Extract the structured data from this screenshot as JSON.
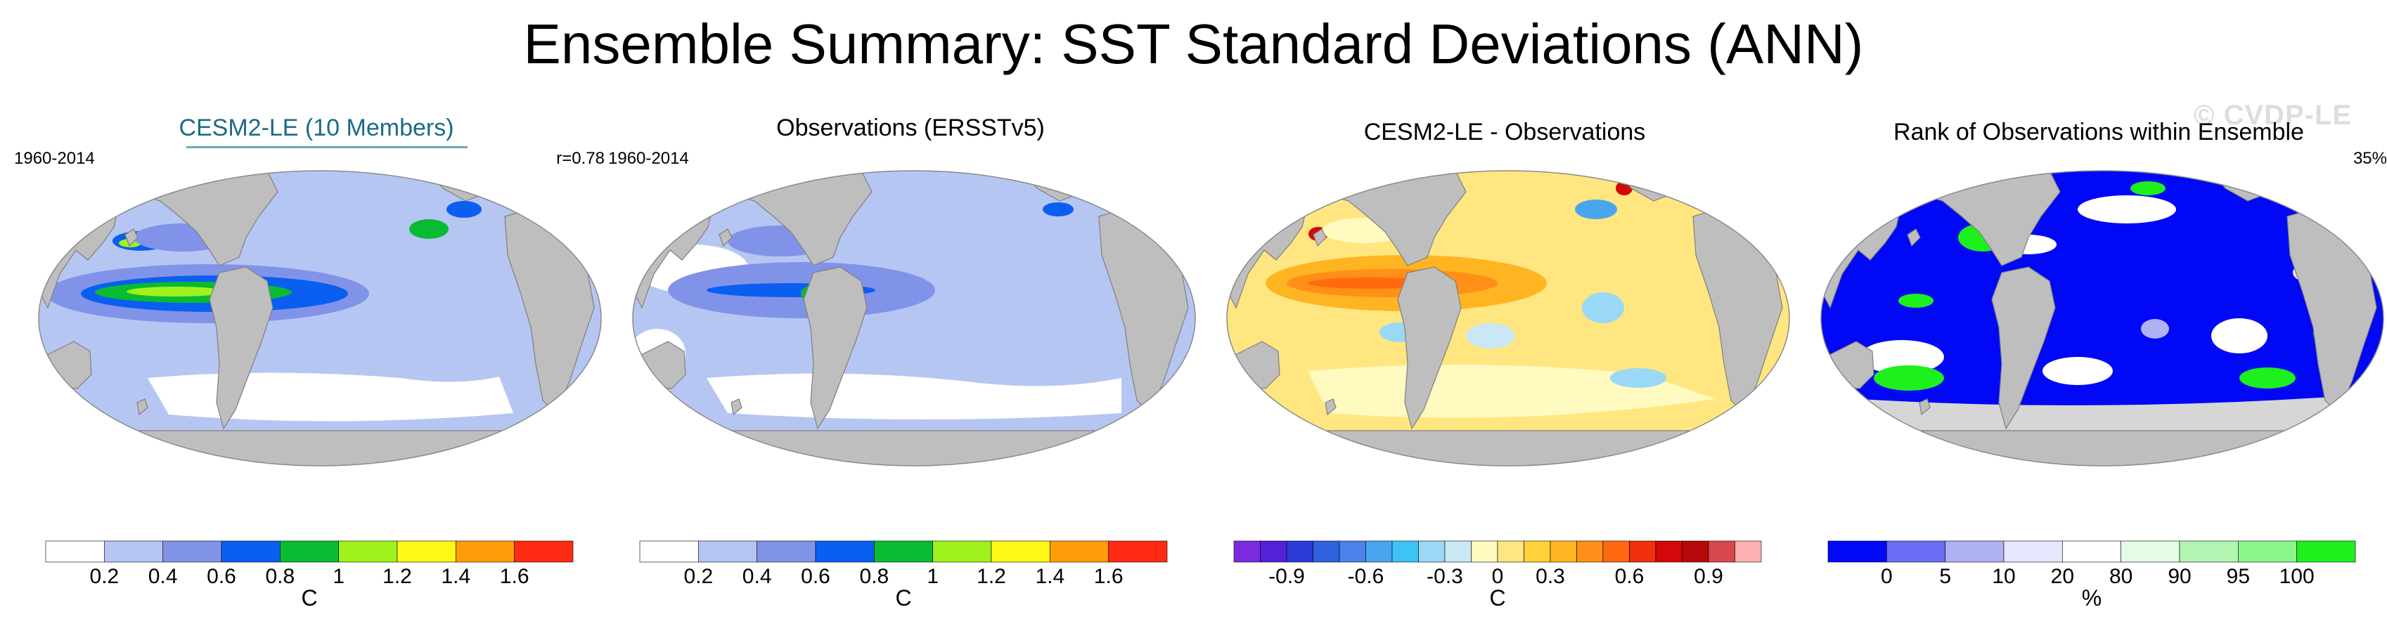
{
  "title": "Ensemble Summary: SST Standard Deviations (ANN)",
  "watermark": "© CVDP-LE",
  "colors": {
    "land": "#bebebe",
    "coast": "#7f7f7f"
  },
  "panels": [
    {
      "title": "CESM2-LE (10 Members)",
      "left_text": "1960-2014",
      "right_text": "r=0.78",
      "map_style": "sd_model",
      "colorbar": {
        "colors": [
          "#ffffff",
          "#b6c6f3",
          "#8193e9",
          "#0a5ef0",
          "#09bb33",
          "#9ff21c",
          "#fff718",
          "#ff9c08",
          "#ff2a12"
        ],
        "labels": [
          "0.2",
          "0.4",
          "0.6",
          "0.8",
          "1",
          "1.2",
          "1.4",
          "1.6"
        ],
        "label_positions": [
          1,
          2,
          3,
          4,
          5,
          6,
          7,
          8
        ],
        "units": "C"
      }
    },
    {
      "title": "Observations (ERSSTv5)",
      "left_text": "1960-2014",
      "right_text": "",
      "map_style": "sd_obs",
      "colorbar": {
        "colors": [
          "#ffffff",
          "#b6c6f3",
          "#8193e9",
          "#0a5ef0",
          "#09bb33",
          "#9ff21c",
          "#fff718",
          "#ff9c08",
          "#ff2a12"
        ],
        "labels": [
          "0.2",
          "0.4",
          "0.6",
          "0.8",
          "1",
          "1.2",
          "1.4",
          "1.6"
        ],
        "label_positions": [
          1,
          2,
          3,
          4,
          5,
          6,
          7,
          8
        ],
        "units": "C"
      }
    },
    {
      "title": "CESM2-LE - Observations",
      "left_text": "",
      "right_text": "",
      "map_style": "diff",
      "colorbar": {
        "colors": [
          "#7d29e0",
          "#5221d8",
          "#2b3bd7",
          "#2f60e0",
          "#4a82ea",
          "#4aa5ef",
          "#3dc3f5",
          "#9ad8f5",
          "#c9e7f5",
          "#fffac0",
          "#ffe680",
          "#ffd23a",
          "#ffb422",
          "#ff8f16",
          "#ff6a10",
          "#f0300c",
          "#d30808",
          "#b60808",
          "#d8474b",
          "#ffb0b0"
        ],
        "labels": [
          "-0.9",
          "-0.6",
          "-0.3",
          "0",
          "0.3",
          "0.6",
          "0.9"
        ],
        "label_positions": [
          2,
          5,
          8,
          10,
          12,
          15,
          18
        ],
        "units": "C"
      }
    },
    {
      "title": "Rank of Observations within Ensemble",
      "left_text": "",
      "right_text": "35%",
      "map_style": "rank",
      "colorbar": {
        "colors": [
          "#0008f5",
          "#6a6ef5",
          "#b0b0f5",
          "#e6e6fc",
          "#ffffff",
          "#e6fbe6",
          "#b2f5b2",
          "#8af58a",
          "#1df01d"
        ],
        "labels": [
          "0",
          "5",
          "10",
          "20",
          "80",
          "90",
          "95",
          "100"
        ],
        "label_positions": [
          1,
          2,
          3,
          4,
          5,
          6,
          7,
          8
        ],
        "units": "%"
      }
    }
  ]
}
